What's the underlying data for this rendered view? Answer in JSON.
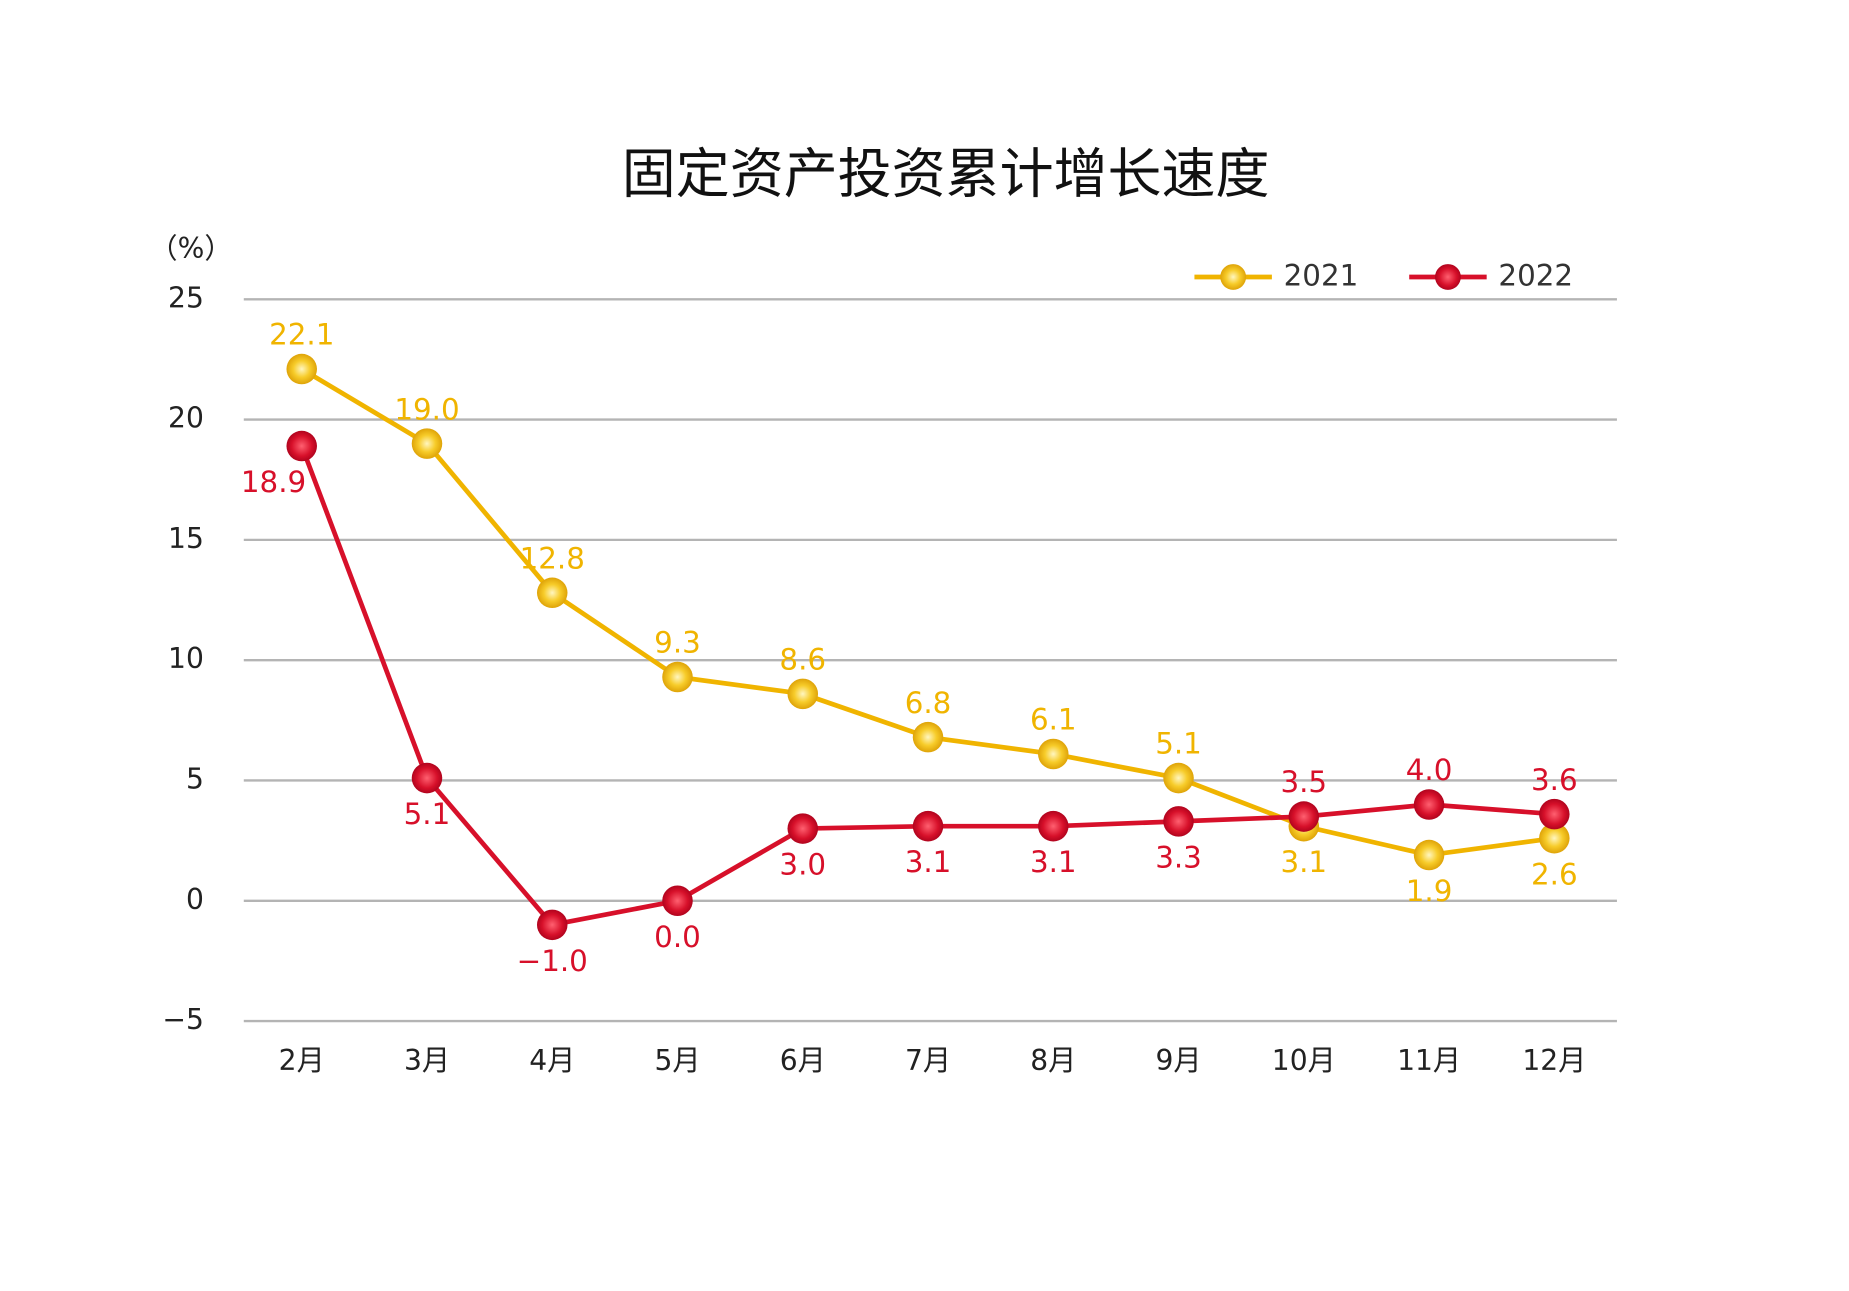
{
  "chart_data": {
    "type": "line",
    "title": "固定资产投资累计增长速度",
    "y_label": "（%）",
    "categories": [
      "2月",
      "3月",
      "4月",
      "5月",
      "6月",
      "7月",
      "8月",
      "9月",
      "10月",
      "11月",
      "12月"
    ],
    "series": [
      {
        "name": "2021",
        "color": "#f0b400",
        "values": [
          22.1,
          19.0,
          12.8,
          9.3,
          8.6,
          6.8,
          6.1,
          5.1,
          3.1,
          1.9,
          2.6
        ],
        "value_labels": [
          "22.1",
          "19.0",
          "12.8",
          "9.3",
          "8.6",
          "6.8",
          "6.1",
          "5.1",
          "3.1",
          "1.9",
          "2.6"
        ]
      },
      {
        "name": "2022",
        "color": "#d7102a",
        "values": [
          18.9,
          5.1,
          -1.0,
          0.0,
          3.0,
          3.1,
          3.1,
          3.3,
          3.5,
          4.0,
          3.6
        ],
        "value_labels": [
          "18.9",
          "5.1",
          "−1.0",
          "0.0",
          "3.0",
          "3.1",
          "3.1",
          "3.3",
          "3.5",
          "4.0",
          "3.6"
        ]
      }
    ],
    "ylim": [
      -5,
      25
    ],
    "yticks": [
      {
        "value": -5,
        "label": "−5"
      },
      0,
      5,
      10,
      15,
      20,
      25
    ],
    "grid": true,
    "legend": "top-right"
  }
}
